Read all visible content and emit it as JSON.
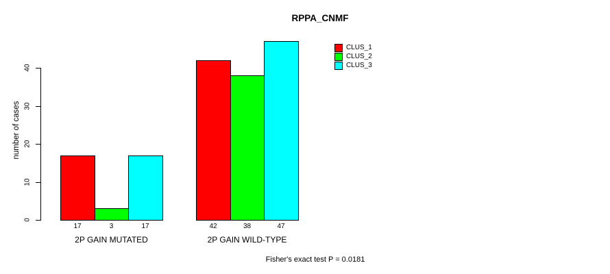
{
  "chart_data": {
    "type": "bar",
    "title": "RPPA_CNMF",
    "ylabel": "number of cases",
    "xlabel": "",
    "categories": [
      "2P GAIN MUTATED",
      "2P GAIN WILD-TYPE"
    ],
    "series": [
      {
        "name": "CLUS_1",
        "color": "#ff0000",
        "values": [
          17,
          42
        ]
      },
      {
        "name": "CLUS_2",
        "color": "#00ff00",
        "values": [
          3,
          38
        ]
      },
      {
        "name": "CLUS_3",
        "color": "#00ffff",
        "values": [
          17,
          47
        ]
      }
    ],
    "yticks": [
      0,
      10,
      20,
      30,
      40
    ],
    "ylim": [
      0,
      47
    ],
    "grid": false,
    "bar_value_labels_shown": true,
    "legend_position": "top-right",
    "annotation": "Fisher's exact test P = 0.0181"
  }
}
